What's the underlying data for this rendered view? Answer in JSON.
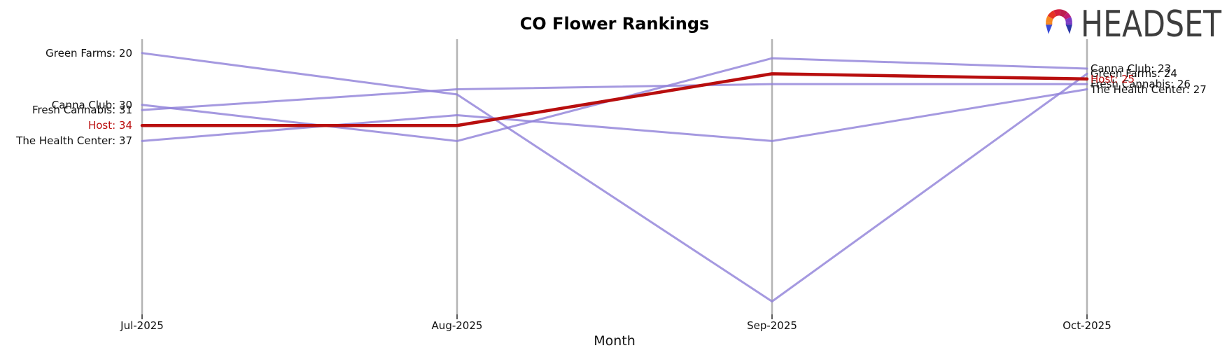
{
  "title": "CO Flower Rankings",
  "logo_text": "HEADSET",
  "colors": {
    "line_default": "#8f80d8",
    "line_highlight": "#b80e0e",
    "gridline": "#b4b4b4",
    "tick": "#222222",
    "label_highlight": "#bb0d0d"
  },
  "chart_data": {
    "type": "line",
    "title": "CO Flower Rankings",
    "xlabel": "Month",
    "ylabel": "",
    "y_axis_note": "rank, lower is better, axis inverted, no visible y ticks",
    "grid": "vertical-gridlines-only",
    "legend": "none (direct labels at line ends)",
    "categories": [
      "Jul-2025",
      "Aug-2025",
      "Sep-2025",
      "Oct-2025"
    ],
    "series": [
      {
        "name": "Green Farms",
        "values": [
          20,
          28,
          68,
          24
        ],
        "label_left": "Green Farms: 20",
        "label_right": "Green Farms: 24",
        "highlight": false
      },
      {
        "name": "Canna Club",
        "values": [
          30,
          37,
          21,
          23
        ],
        "label_left": "Canna Club: 30",
        "label_right": "Canna Club: 23",
        "highlight": false
      },
      {
        "name": "Fresh Cannabis",
        "values": [
          31,
          27,
          26,
          26
        ],
        "label_left": "Fresh Cannabis: 31",
        "label_right": "Fresh Cannabis: 26",
        "highlight": false
      },
      {
        "name": "Host",
        "values": [
          34,
          34,
          24,
          25
        ],
        "label_left": "Host: 34",
        "label_right": "Host: 25",
        "highlight": true
      },
      {
        "name": "The Health Center",
        "values": [
          37,
          32,
          37,
          27
        ],
        "label_left": "The Health Center: 37",
        "label_right": "The Health Center: 27",
        "highlight": false
      }
    ]
  }
}
